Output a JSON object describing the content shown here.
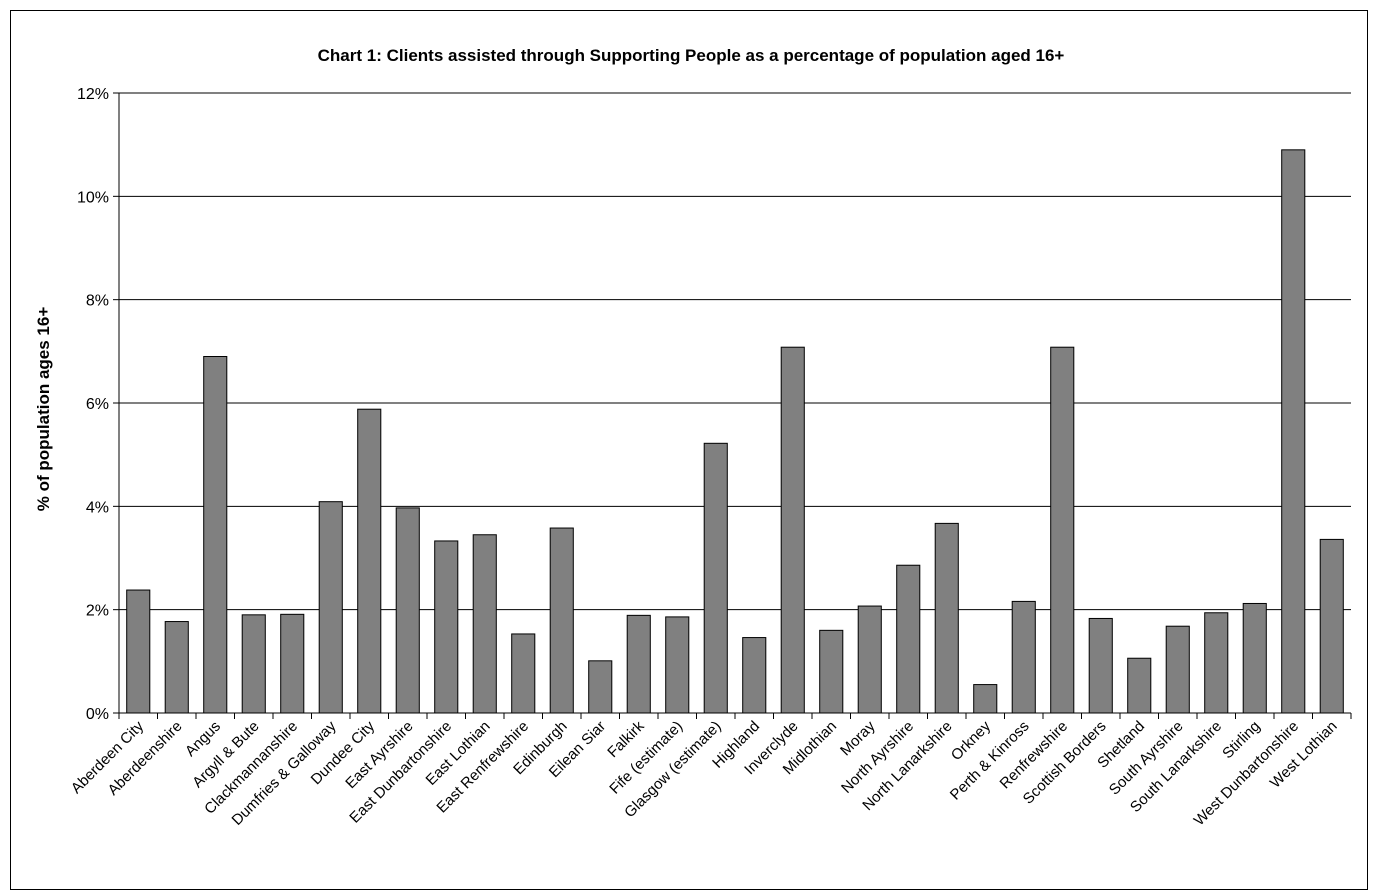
{
  "chart_data": {
    "type": "bar",
    "title": "Chart 1: Clients assisted through Supporting People as a percentage of population aged 16+",
    "xlabel": "",
    "ylabel": "% of population ages 16+",
    "ylim": [
      0,
      12
    ],
    "yticks": [
      0,
      2,
      4,
      6,
      8,
      10,
      12
    ],
    "ytick_labels": [
      "0%",
      "2%",
      "4%",
      "6%",
      "8%",
      "10%",
      "12%"
    ],
    "grid": true,
    "bar_color": "#808080",
    "categories": [
      "Aberdeen City",
      "Aberdeenshire",
      "Angus",
      "Argyll & Bute",
      "Clackmannanshire",
      "Dumfries & Galloway",
      "Dundee City",
      "East Ayrshire",
      "East Dunbartonshire",
      "East Lothian",
      "East Renfrewshire",
      "Edinburgh",
      "Eilean Siar",
      "Falkirk",
      "Fife (estimate)",
      "Glasgow (estimate)",
      "Highland",
      "Inverclyde",
      "Midlothian",
      "Moray",
      "North Ayrshire",
      "North Lanarkshire",
      "Orkney",
      "Perth & Kinross",
      "Renfrewshire",
      "Scottish Borders",
      "Shetland",
      "South Ayrshire",
      "South Lanarkshire",
      "Stirling",
      "West Dunbartonshire",
      "West Lothian"
    ],
    "values": [
      2.38,
      1.77,
      6.9,
      1.9,
      1.91,
      4.09,
      5.88,
      3.97,
      3.33,
      3.45,
      1.53,
      3.58,
      1.01,
      1.89,
      1.86,
      5.22,
      1.46,
      7.08,
      1.6,
      2.07,
      2.86,
      3.67,
      0.55,
      2.16,
      7.08,
      1.83,
      1.06,
      1.68,
      1.94,
      2.12,
      10.9,
      3.36
    ]
  }
}
